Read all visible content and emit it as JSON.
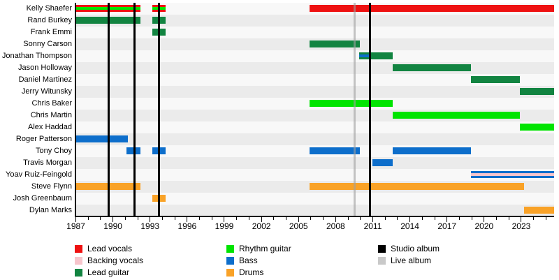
{
  "page": {
    "background": "#ffffff"
  },
  "chart_data": {
    "type": "bar",
    "variant": "band-membership-gantt-timeline",
    "title": "",
    "axis": {
      "start_year": 1987,
      "end_year": 2025.65,
      "major_ticks": [
        1987,
        1990,
        1993,
        1996,
        1999,
        2002,
        2005,
        2008,
        2011,
        2014,
        2017,
        2020,
        2023
      ],
      "minor_tick_step": 1,
      "last_minor_tick": 2025
    },
    "role_colors": {
      "lead_vocals": "#ee1111",
      "backing_vocals": "#f7c5cc",
      "lead_guitar": "#128441",
      "rhythm_guitar": "#00e400",
      "bass": "#0d6ecb",
      "drums": "#f9a227"
    },
    "row_background_even": "#f8f8f8",
    "row_background_odd": "#ebebeb",
    "album_line_colors": {
      "studio": "#000000",
      "live": "#c9c9c9"
    },
    "members": [
      {
        "name": "Kelly Shaefer",
        "segments": [
          {
            "from": 1987,
            "to": 1992.25,
            "roles": [
              "lead_vocals",
              "rhythm_guitar"
            ]
          },
          {
            "from": 1993.2,
            "to": 1994.25,
            "roles": [
              "lead_vocals",
              "rhythm_guitar"
            ]
          },
          {
            "from": 2005.9,
            "to": "present",
            "roles": [
              "lead_vocals"
            ]
          }
        ]
      },
      {
        "name": "Rand Burkey",
        "segments": [
          {
            "from": 1987,
            "to": 1992.25,
            "roles": [
              "lead_guitar"
            ]
          },
          {
            "from": 1993.2,
            "to": 1994.25,
            "roles": [
              "lead_guitar"
            ]
          }
        ]
      },
      {
        "name": "Frank Emmi",
        "segments": [
          {
            "from": 1993.2,
            "to": 1994.25,
            "roles": [
              "lead_guitar"
            ]
          }
        ]
      },
      {
        "name": "Sonny Carson",
        "segments": [
          {
            "from": 2005.9,
            "to": 2009.95,
            "roles": [
              "lead_guitar"
            ]
          }
        ]
      },
      {
        "name": "Jonathan Thompson",
        "segments": [
          {
            "from": 2009.9,
            "to": 2010.8,
            "roles": [
              "lead_guitar",
              "bass"
            ]
          },
          {
            "from": 2010.8,
            "to": 2012.6,
            "roles": [
              "lead_guitar"
            ]
          }
        ]
      },
      {
        "name": "Jason Holloway",
        "segments": [
          {
            "from": 2012.6,
            "to": 2018.95,
            "roles": [
              "lead_guitar"
            ]
          }
        ]
      },
      {
        "name": "Daniel Martinez",
        "segments": [
          {
            "from": 2018.95,
            "to": 2022.9,
            "roles": [
              "lead_guitar"
            ]
          }
        ]
      },
      {
        "name": "Jerry Witunsky",
        "segments": [
          {
            "from": 2022.9,
            "to": "present",
            "roles": [
              "lead_guitar"
            ]
          }
        ]
      },
      {
        "name": "Chris Baker",
        "segments": [
          {
            "from": 2005.9,
            "to": 2012.6,
            "roles": [
              "rhythm_guitar"
            ]
          }
        ]
      },
      {
        "name": "Chris Martin",
        "segments": [
          {
            "from": 2012.6,
            "to": 2022.9,
            "roles": [
              "rhythm_guitar"
            ]
          }
        ]
      },
      {
        "name": "Alex Haddad",
        "segments": [
          {
            "from": 2022.9,
            "to": "present",
            "roles": [
              "rhythm_guitar"
            ]
          }
        ]
      },
      {
        "name": "Roger Patterson",
        "segments": [
          {
            "from": 1987,
            "to": 1991.2,
            "roles": [
              "bass"
            ]
          }
        ]
      },
      {
        "name": "Tony Choy",
        "segments": [
          {
            "from": 1991.1,
            "to": 1992.2,
            "roles": [
              "bass"
            ]
          },
          {
            "from": 1993.2,
            "to": 1994.25,
            "roles": [
              "bass"
            ]
          },
          {
            "from": 2005.9,
            "to": 2009.95,
            "roles": [
              "bass"
            ]
          },
          {
            "from": 2012.6,
            "to": 2018.95,
            "roles": [
              "bass"
            ]
          }
        ]
      },
      {
        "name": "Travis Morgan",
        "segments": [
          {
            "from": 2011.0,
            "to": 2012.6,
            "roles": [
              "bass"
            ]
          }
        ]
      },
      {
        "name": "Yoav Ruiz-Feingold",
        "segments": [
          {
            "from": 2018.95,
            "to": "present",
            "roles": [
              "bass",
              "backing_vocals"
            ]
          }
        ]
      },
      {
        "name": "Steve Flynn",
        "segments": [
          {
            "from": 1987,
            "to": 1992.25,
            "roles": [
              "drums"
            ]
          },
          {
            "from": 2005.9,
            "to": 2023.2,
            "roles": [
              "drums"
            ]
          }
        ]
      },
      {
        "name": "Josh Greenbaum",
        "segments": [
          {
            "from": 1993.2,
            "to": 1994.25,
            "roles": [
              "drums"
            ]
          }
        ]
      },
      {
        "name": "Dylan Marks",
        "segments": [
          {
            "from": 2023.2,
            "to": "present",
            "roles": [
              "drums"
            ]
          }
        ]
      }
    ],
    "album_lines": {
      "studio": [
        1989.65,
        1991.75,
        1993.7,
        2010.8
      ],
      "live": [
        2009.55
      ]
    },
    "legend": [
      {
        "label": "Lead vocals",
        "color": "#ee1111"
      },
      {
        "label": "Backing vocals",
        "color": "#f7c5cc"
      },
      {
        "label": "Lead guitar",
        "color": "#128441"
      },
      {
        "label": "Rhythm guitar",
        "color": "#00e400"
      },
      {
        "label": "Bass",
        "color": "#0d6ecb"
      },
      {
        "label": "Drums",
        "color": "#f9a227"
      },
      {
        "label": "Studio album",
        "color": "#000000"
      },
      {
        "label": "Live album",
        "color": "#c9c9c9"
      }
    ]
  }
}
